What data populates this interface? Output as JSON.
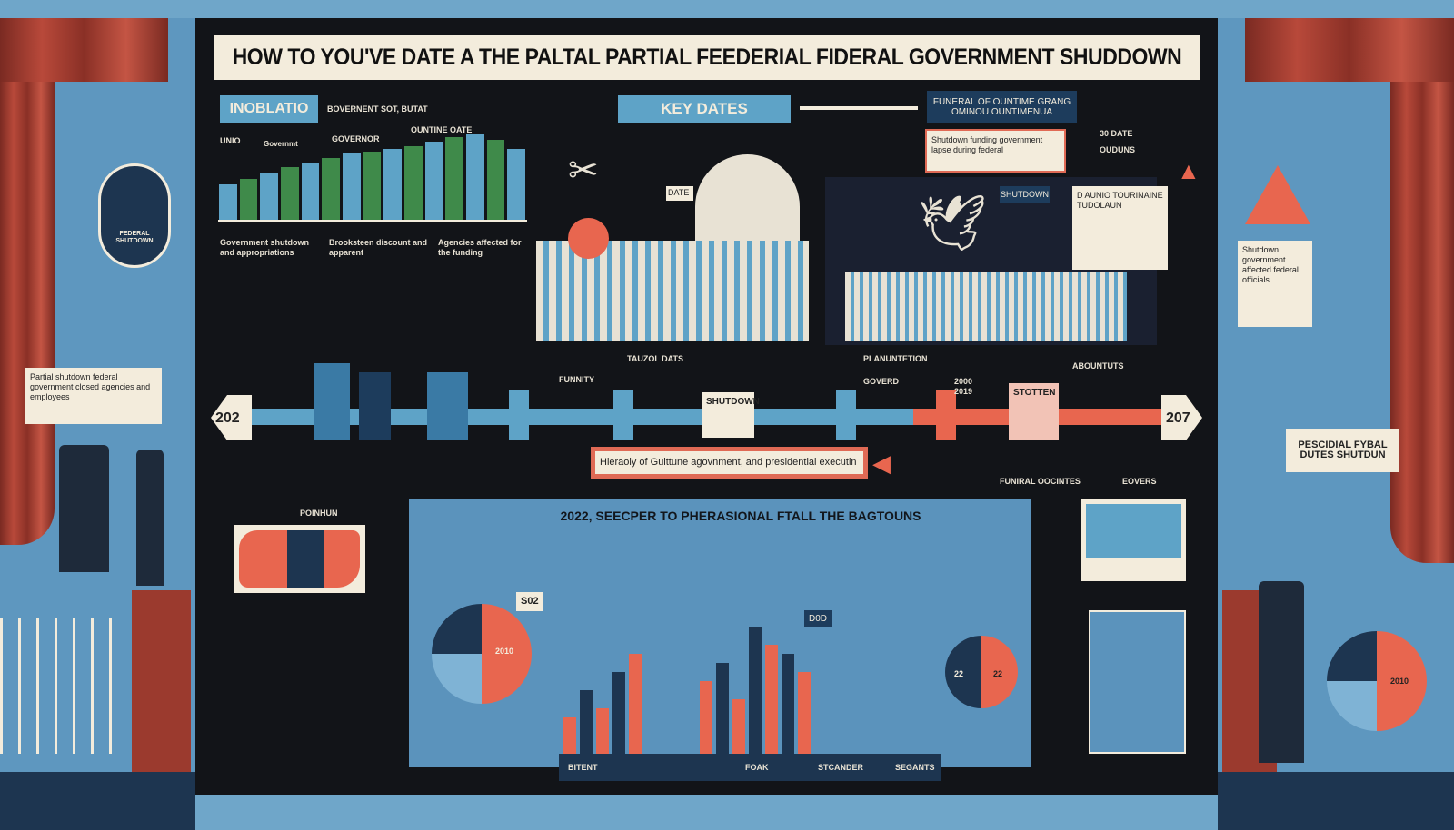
{
  "title": "HOW TO YOU'VE DATE A THE PALTAL PARTIAL FEEDERIAL FIDERAL GOVERNMENT SHUDDOWN",
  "top": {
    "inoblation": "INOBLATIO",
    "budget_label": "BOVERNENT SOT, BUTAT",
    "key_dates": "KEY DATES",
    "right_header": "FUNERAL OF OUNTIME GRANG OMINOU OUNTIMENUA",
    "right_card": "Shutdown funding government lapse during federal",
    "capitol_flag": "DATE",
    "shutdown_label": "SHUTDOWN",
    "sign_card": "D AUNIO TOURINAINE TUDOLAUN",
    "legend": [
      "30 DATE",
      "OUDUNS"
    ]
  },
  "chart_top": {
    "type": "bar",
    "values": [
      30,
      35,
      40,
      45,
      48,
      52,
      56,
      58,
      60,
      62,
      66,
      70,
      72,
      68,
      60
    ],
    "labels": [
      "UNIO",
      "Governmt",
      "GOVERNOR",
      "OUNTINE OATE"
    ]
  },
  "notes": [
    "Government shutdown and appropriations",
    "Brooksteen discount and apparent",
    "Agencies affected for the funding"
  ],
  "timeline": {
    "start": "202",
    "end": "207",
    "labels": [
      "TAUZOL DATS",
      "PLANUNTETION",
      "FUNNITY",
      "GOVERD",
      "2000 2019",
      "ABOUNTUTS",
      "STOTTEN",
      "SHUTDOWN"
    ],
    "banner": "Hieraoly of Guittune agovnment, and presidential executin"
  },
  "bottom": {
    "title": "2022, SEECPER TO PHERASIONAL FTALL THE BAGTOUNS",
    "pie_left": "2010",
    "pie_left_label": "S02",
    "pie_right": "22",
    "pie_right2": "22",
    "year_tag": "D0D",
    "footer": [
      "BITENT",
      "FOAK",
      "STCANDER",
      "SEGANTS"
    ],
    "right_labels": [
      "FUNIRAL OOCINTES",
      "EOVERS"
    ],
    "map_label": "POINHUN"
  },
  "chart_bottom": {
    "type": "bar",
    "series": [
      {
        "name": "",
        "values": [
          40,
          70,
          50,
          90,
          110
        ]
      },
      {
        "name": "",
        "values": [
          80,
          100,
          60,
          140,
          120,
          110,
          90
        ]
      }
    ]
  },
  "right_panel": {
    "sign": "PESCIDIAL FYBAL DUTES SHUTDUN",
    "pie": "2010",
    "note": "Shutdown government affected federal officials"
  },
  "left_panel": {
    "note": "Partial shutdown federal government closed agencies and employees",
    "badge": "FEDERAL SHUTDOWN"
  },
  "colors": {
    "navy": "#1d3550",
    "blue": "#5ea3c7",
    "red": "#e8664f",
    "cream": "#f3ecdc",
    "bg": "#121418"
  }
}
